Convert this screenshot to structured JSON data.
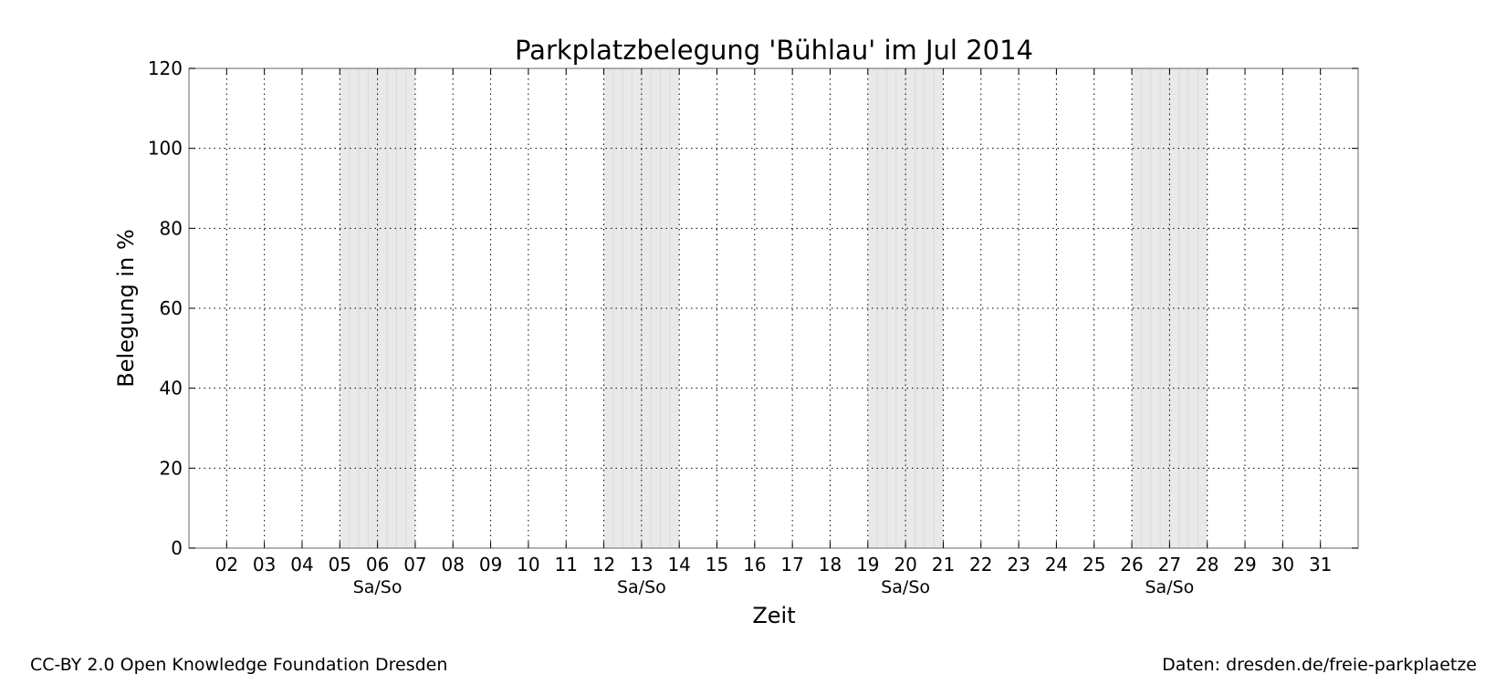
{
  "chart_data": {
    "type": "line",
    "title": "Parkplatzbelegung 'Bühlau' im Jul 2014",
    "xlabel": "Zeit",
    "ylabel": "Belegung in %",
    "ylim": [
      0,
      120
    ],
    "yticks": [
      0,
      20,
      40,
      60,
      80,
      100,
      120
    ],
    "xlim": [
      "2014-07-01",
      "2014-08-01"
    ],
    "x_tick_labels": [
      "02",
      "03",
      "04",
      "05",
      "06",
      "07",
      "08",
      "09",
      "10",
      "11",
      "12",
      "13",
      "14",
      "15",
      "16",
      "17",
      "18",
      "19",
      "20",
      "21",
      "22",
      "23",
      "24",
      "25",
      "26",
      "27",
      "28",
      "29",
      "30",
      "31"
    ],
    "weekend_label": "Sa/So",
    "weekends": [
      {
        "start": "2014-07-05",
        "end": "2014-07-07"
      },
      {
        "start": "2014-07-12",
        "end": "2014-07-14"
      },
      {
        "start": "2014-07-19",
        "end": "2014-07-21"
      },
      {
        "start": "2014-07-26",
        "end": "2014-07-28"
      }
    ],
    "grid": true,
    "series": [],
    "colors": {
      "weekend_fill": "#e9e9e9",
      "grid": "#000000",
      "axes": "#888888"
    }
  },
  "footer": {
    "license": "CC-BY 2.0 Open Knowledge Foundation Dresden",
    "source": "Daten: dresden.de/freie-parkplaetze"
  }
}
